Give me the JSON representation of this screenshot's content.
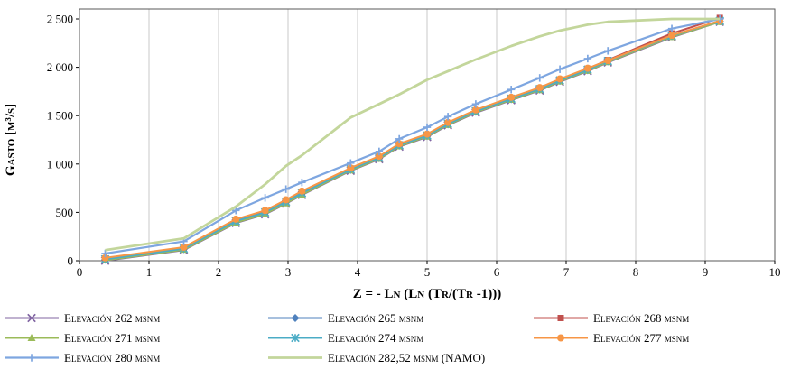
{
  "chart_data": {
    "type": "line",
    "title": "",
    "xlabel": "Z = - Ln (Ln (Tr/(Tr -1)))",
    "ylabel": "Gasto [m³/s]",
    "xlim": [
      0,
      10
    ],
    "ylim": [
      0,
      2500
    ],
    "gridlines": "vertical",
    "legend_position": "bottom",
    "x_ticks": [
      {
        "value": 0,
        "label": "0"
      },
      {
        "value": 1,
        "label": "1"
      },
      {
        "value": 2,
        "label": "2"
      },
      {
        "value": 3,
        "label": "3"
      },
      {
        "value": 4,
        "label": "4"
      },
      {
        "value": 5,
        "label": "5"
      },
      {
        "value": 6,
        "label": "6"
      },
      {
        "value": 7,
        "label": "7"
      },
      {
        "value": 8,
        "label": "8"
      },
      {
        "value": 9,
        "label": "9"
      },
      {
        "value": 10,
        "label": "10"
      }
    ],
    "y_ticks": [
      {
        "value": 0,
        "label": "0"
      },
      {
        "value": 500,
        "label": "500"
      },
      {
        "value": 1000,
        "label": "1 000"
      },
      {
        "value": 1500,
        "label": "1 500"
      },
      {
        "value": 2000,
        "label": "2 000"
      },
      {
        "value": 2500,
        "label": "2 500"
      }
    ],
    "x": [
      0.37,
      1.5,
      2.25,
      2.67,
      2.97,
      3.2,
      3.9,
      4.31,
      4.6,
      5.0,
      5.3,
      5.7,
      6.21,
      6.62,
      6.91,
      7.31,
      7.6,
      8.52,
      9.21
    ],
    "series": [
      {
        "label": "Elevación 262 msnm",
        "color": "#8064A2",
        "marker": "x",
        "width": 2,
        "y": [
          0,
          110,
          390,
          480,
          590,
          680,
          930,
          1050,
          1180,
          1280,
          1400,
          1530,
          1660,
          1760,
          1850,
          1960,
          2050,
          2310,
          2470
        ]
      },
      {
        "label": "Elevación 265 msnm",
        "color": "#4F81BD",
        "marker": "diamond",
        "width": 2,
        "y": [
          10,
          120,
          405,
          495,
          605,
          695,
          940,
          1060,
          1190,
          1290,
          1410,
          1540,
          1670,
          1770,
          1860,
          1970,
          2060,
          2320,
          2475
        ]
      },
      {
        "label": "Elevación 268 msnm",
        "color": "#C0504D",
        "marker": "square",
        "width": 2,
        "y": [
          20,
          130,
          415,
          505,
          615,
          705,
          950,
          1070,
          1200,
          1300,
          1420,
          1550,
          1680,
          1780,
          1870,
          1985,
          2075,
          2350,
          2510
        ]
      },
      {
        "label": "Elevación 271 msnm",
        "color": "#9BBB59",
        "marker": "triangle",
        "width": 2,
        "y": [
          5,
          115,
          395,
          485,
          595,
          685,
          935,
          1055,
          1185,
          1285,
          1405,
          1535,
          1665,
          1765,
          1855,
          1965,
          2055,
          2315,
          2470
        ]
      },
      {
        "label": "Elevación 274 msnm",
        "color": "#4BACC6",
        "marker": "star",
        "width": 2,
        "y": [
          15,
          125,
          410,
          500,
          610,
          700,
          945,
          1065,
          1195,
          1295,
          1415,
          1545,
          1675,
          1775,
          1865,
          1975,
          2065,
          2325,
          2480
        ]
      },
      {
        "label": "Elevación 277 msnm",
        "color": "#F79646",
        "marker": "circle",
        "width": 2,
        "y": [
          30,
          140,
          430,
          520,
          630,
          720,
          960,
          1080,
          1210,
          1310,
          1430,
          1560,
          1690,
          1790,
          1880,
          1990,
          2070,
          2330,
          2480
        ]
      },
      {
        "label": "Elevación 280 msnm",
        "color": "#7EA6E0",
        "marker": "plus",
        "width": 2.2,
        "y": [
          75,
          200,
          520,
          650,
          740,
          810,
          1010,
          1130,
          1260,
          1380,
          1490,
          1620,
          1770,
          1890,
          1980,
          2090,
          2170,
          2400,
          2500
        ]
      },
      {
        "label": "Elevación 282,52 msnm (NAMO)",
        "color": "#C3D69B",
        "marker": "none",
        "width": 2.8,
        "y": [
          110,
          230,
          560,
          790,
          980,
          1090,
          1480,
          1620,
          1720,
          1870,
          1960,
          2080,
          2220,
          2320,
          2380,
          2440,
          2470,
          2500,
          2500
        ]
      }
    ],
    "style": {
      "gridline_color": "#C8C8C8",
      "border_color": "#595959",
      "background": "#FFFFFF"
    }
  }
}
